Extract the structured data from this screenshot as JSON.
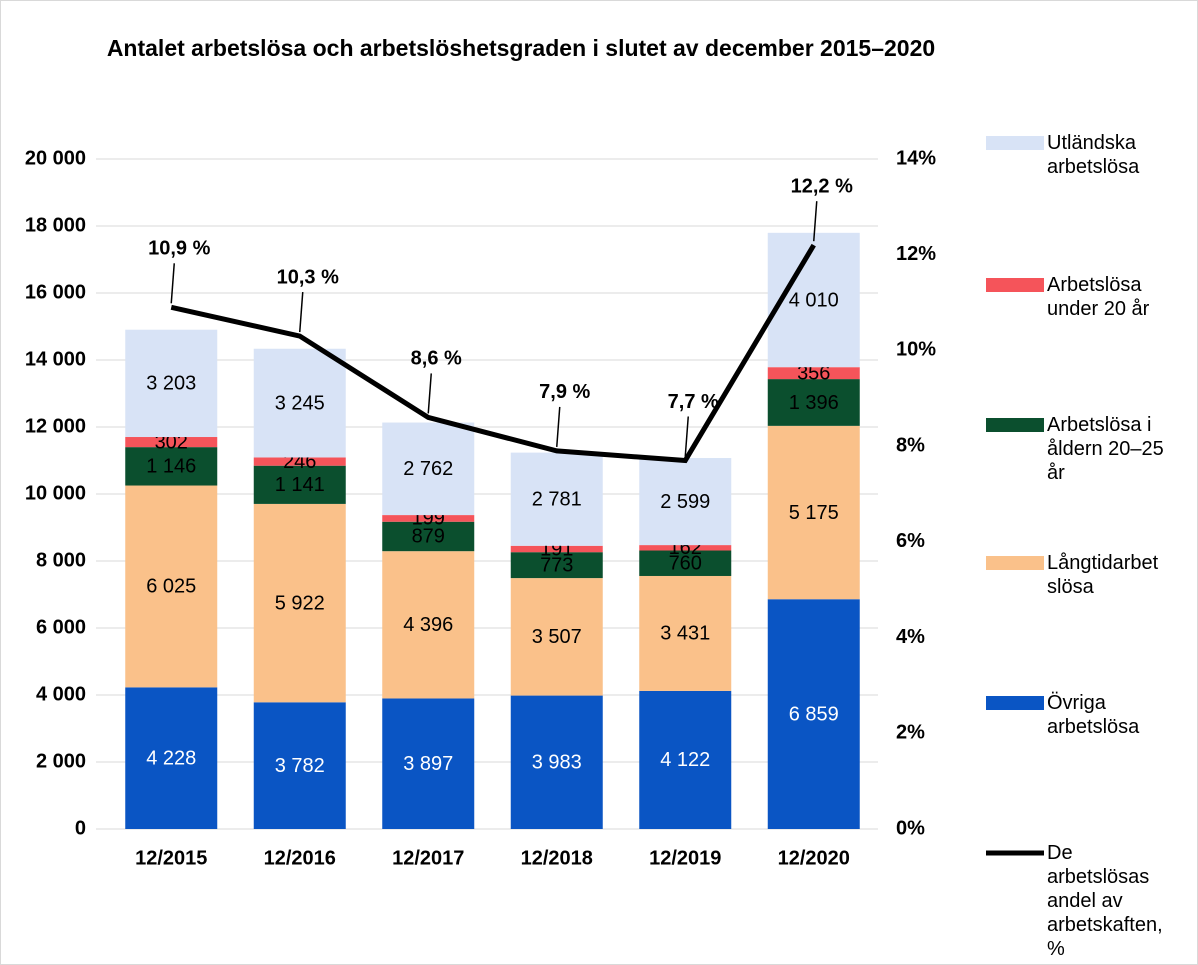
{
  "chart_data": {
    "type": "bar",
    "title": "Antalet arbetslösa och arbetslöshetsgraden i slutet av december 2015–2020",
    "categories": [
      "12/2015",
      "12/2016",
      "12/2017",
      "12/2018",
      "12/2019",
      "12/2020"
    ],
    "stacked": true,
    "series": [
      {
        "name": "Övriga arbetslösa",
        "color": "#0a55c4",
        "values": [
          4228,
          3782,
          3897,
          3983,
          4122,
          6859
        ],
        "value_labels": [
          "4 228",
          "3 782",
          "3 897",
          "3 983",
          "4 122",
          "6 859"
        ]
      },
      {
        "name": "Långtidarbetslösa",
        "color": "#fac18a",
        "values": [
          6025,
          5922,
          4396,
          3507,
          3431,
          5175
        ],
        "value_labels": [
          "6 025",
          "5 922",
          "4 396",
          "3 507",
          "3 431",
          "5 175"
        ]
      },
      {
        "name": "Arbetslösa i åldern 20–25 år",
        "color": "#0b4f2e",
        "values": [
          1146,
          1141,
          879,
          773,
          760,
          1396
        ],
        "value_labels": [
          "1 146",
          "1 141",
          "879",
          "773",
          "760",
          "1 396"
        ]
      },
      {
        "name": "Arbetslösa under 20 år",
        "color": "#f5545a",
        "values": [
          302,
          246,
          199,
          191,
          162,
          356
        ],
        "value_labels": [
          "302",
          "246",
          "199",
          "191",
          "162",
          "356"
        ]
      },
      {
        "name": "Utländska arbetslösa",
        "color": "#d8e3f6",
        "values": [
          3203,
          3245,
          2762,
          2781,
          2599,
          4010
        ],
        "value_labels": [
          "3 203",
          "3 245",
          "2 762",
          "2 781",
          "2 599",
          "4 010"
        ]
      },
      {
        "name": "De arbetslösas andel av arbetskaften, %",
        "type": "line",
        "axis": "y2",
        "color": "#000000",
        "values": [
          10.9,
          10.3,
          8.6,
          7.9,
          7.7,
          12.2
        ],
        "value_labels": [
          "10,9 %",
          "10,3 %",
          "8,6 %",
          "7,9 %",
          "7,7 %",
          "12,2 %"
        ]
      }
    ],
    "ylim": [
      0,
      20000
    ],
    "yticks": [
      0,
      {
        "value": 2000,
        "label": "2 000"
      },
      {
        "value": 4000,
        "label": "4 000"
      },
      {
        "value": 6000,
        "label": "6 000"
      },
      {
        "value": 8000,
        "label": "8 000"
      },
      {
        "value": 10000,
        "label": "10 000"
      },
      {
        "value": 12000,
        "label": "12 000"
      },
      {
        "value": 14000,
        "label": "14 000"
      },
      {
        "value": 16000,
        "label": "16 000"
      },
      {
        "value": 18000,
        "label": "18 000"
      },
      {
        "value": 20000,
        "label": "20 000"
      }
    ],
    "y2lim": [
      0,
      14
    ],
    "y2ticks": [
      {
        "value": 0,
        "label": "0%"
      },
      {
        "value": 2,
        "label": "2%"
      },
      {
        "value": 4,
        "label": "4%"
      },
      {
        "value": 6,
        "label": "6%"
      },
      {
        "value": 8,
        "label": "8%"
      },
      {
        "value": 10,
        "label": "10%"
      },
      {
        "value": 12,
        "label": "12%"
      },
      {
        "value": 14,
        "label": "14%"
      }
    ],
    "grid": true,
    "legend": "right"
  }
}
